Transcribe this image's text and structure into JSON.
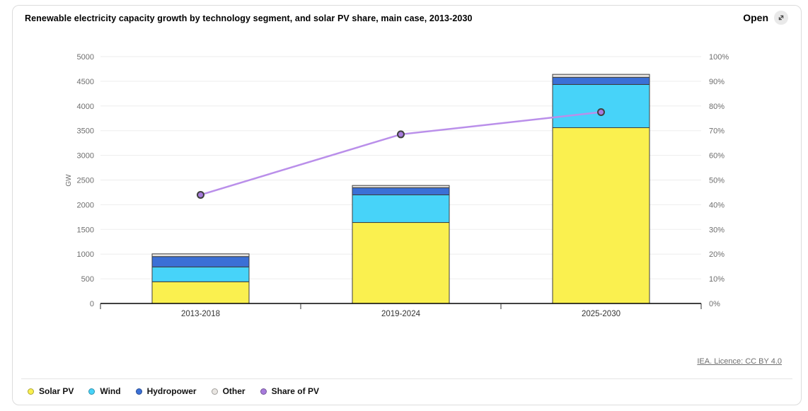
{
  "window": {
    "title": "Renewable electricity capacity growth by technology segment, and solar PV share, main case, 2013-2030",
    "open_button": "Open",
    "source_link": "IEA. Licence: CC BY 4.0"
  },
  "chart_data": {
    "type": "bar",
    "subtype": "stacked-bars-with-line-overlay",
    "title": "Renewable electricity capacity growth by technology segment, and solar PV share, main case, 2013-2030",
    "categories": [
      "2013-2018",
      "2019-2024",
      "2025-2030"
    ],
    "series": [
      {
        "name": "Solar PV",
        "kind": "bar",
        "values": [
          440,
          1640,
          3560
        ],
        "color": "#FAF04F"
      },
      {
        "name": "Wind",
        "kind": "bar",
        "values": [
          300,
          560,
          875
        ],
        "color": "#47D3F9"
      },
      {
        "name": "Hydropower",
        "kind": "bar",
        "values": [
          210,
          145,
          145
        ],
        "color": "#3B70D6"
      },
      {
        "name": "Other",
        "kind": "bar",
        "values": [
          55,
          45,
          60
        ],
        "color": "#E9E6E2"
      },
      {
        "name": "Share of PV",
        "kind": "line",
        "axis": "right",
        "unit": "%",
        "values": [
          44,
          68.5,
          77.5
        ],
        "color": "#BA8FEA",
        "marker_color": "#A77BDC"
      }
    ],
    "ylabel": "GW",
    "y_left": {
      "min": 0,
      "max": 5000,
      "step": 500
    },
    "y_right": {
      "min": 0,
      "max": 100,
      "step": 10,
      "suffix": "%"
    },
    "grid": true,
    "legend_position": "bottom"
  },
  "colors": {
    "grid": "#EDEDED",
    "axis": "#000000",
    "tick": "#333333",
    "tick_label": "#6E6E6E",
    "category_label": "#333333",
    "bar_border": "#3D3D3D",
    "card_border": "#DCDCDC"
  }
}
